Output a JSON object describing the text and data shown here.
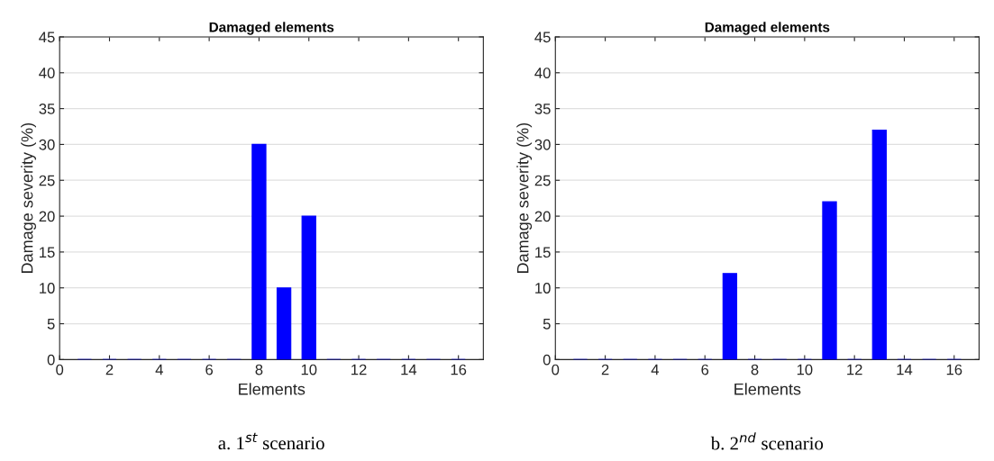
{
  "chart_data": [
    {
      "type": "bar",
      "title": "Damaged elements",
      "xlabel": "Elements",
      "ylabel": "Damage severity (%)",
      "x": [
        1,
        2,
        3,
        4,
        5,
        6,
        7,
        8,
        9,
        10,
        11,
        12,
        13,
        14,
        15,
        16
      ],
      "values": [
        0,
        0,
        0,
        0,
        0,
        0,
        0,
        30,
        10,
        20,
        0,
        0,
        0,
        0,
        0,
        0
      ],
      "color": "#0000ff",
      "xlim": [
        0,
        17
      ],
      "xticks": [
        0,
        2,
        4,
        6,
        8,
        10,
        12,
        14,
        16
      ],
      "ylim": [
        0,
        45
      ],
      "yticks": [
        0,
        5,
        10,
        15,
        20,
        25,
        30,
        35,
        40,
        45
      ],
      "grid": "y",
      "annotations": [
        "a. 1$^{st}$ scenario"
      ]
    },
    {
      "type": "bar",
      "title": "Damaged elements",
      "xlabel": "Elements",
      "ylabel": "Damage severity (%)",
      "x": [
        1,
        2,
        3,
        4,
        5,
        6,
        7,
        8,
        9,
        10,
        11,
        12,
        13,
        14,
        15,
        16
      ],
      "values": [
        0,
        0,
        0,
        0,
        0,
        0,
        12,
        0,
        0,
        0,
        22,
        0,
        32,
        0,
        0,
        0
      ],
      "color": "#0000ff",
      "xlim": [
        0,
        17
      ],
      "xticks": [
        0,
        2,
        4,
        6,
        8,
        10,
        12,
        14,
        16
      ],
      "ylim": [
        0,
        45
      ],
      "yticks": [
        0,
        5,
        10,
        15,
        20,
        25,
        30,
        35,
        40,
        45
      ],
      "grid": "y",
      "annotations": [
        "b. 2$^{nd}$ scenario"
      ]
    }
  ]
}
